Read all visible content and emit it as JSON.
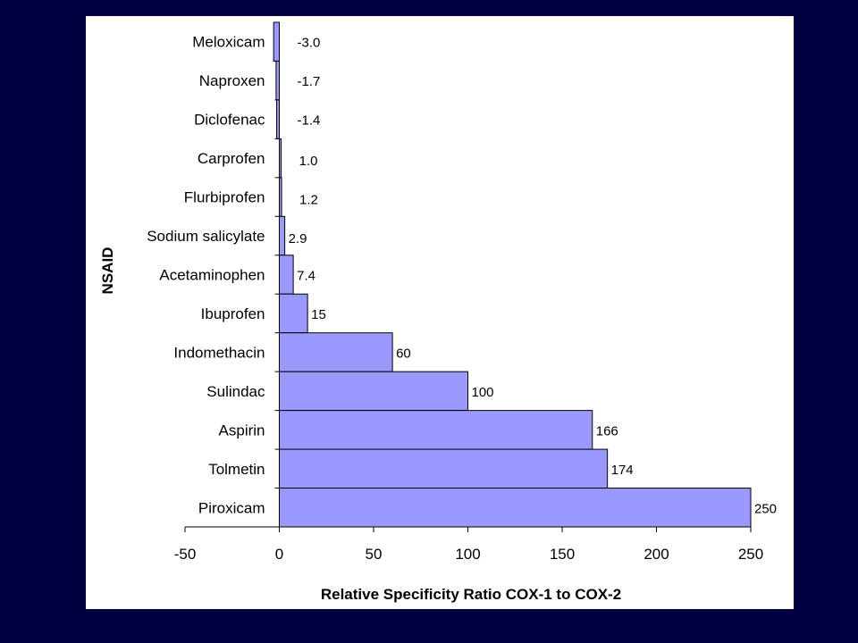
{
  "chart_data": {
    "type": "bar",
    "orientation": "horizontal",
    "title": "",
    "xlabel": "Relative Specificity Ratio COX-1 to COX-2",
    "ylabel": "NSAID",
    "xlim": [
      -50,
      250
    ],
    "xticks": [
      -50,
      0,
      50,
      100,
      150,
      200,
      250
    ],
    "grid": false,
    "legend": "none",
    "bar_color": "#9999ff",
    "bar_edge_color": "#000000",
    "categories": [
      "Meloxicam",
      "Naproxen",
      "Diclofenac",
      "Carprofen",
      "Flurbiprofen",
      "Sodium salicylate",
      "Acetaminophen",
      "Ibuprofen",
      "Indomethacin",
      "Sulindac",
      "Aspirin",
      "Tolmetin",
      "Piroxicam"
    ],
    "values": [
      -3.0,
      -1.7,
      -1.4,
      1.0,
      1.2,
      2.9,
      7.4,
      15,
      60,
      100,
      166,
      174,
      250
    ],
    "data_labels": [
      "-3.0",
      "-1.7",
      "-1.4",
      "1.0",
      "1.2",
      "2.9",
      "7.4",
      "15",
      "60",
      "100",
      "166",
      "174",
      "250"
    ]
  },
  "colors": {
    "background": "#000040",
    "panel": "#ffffff"
  }
}
